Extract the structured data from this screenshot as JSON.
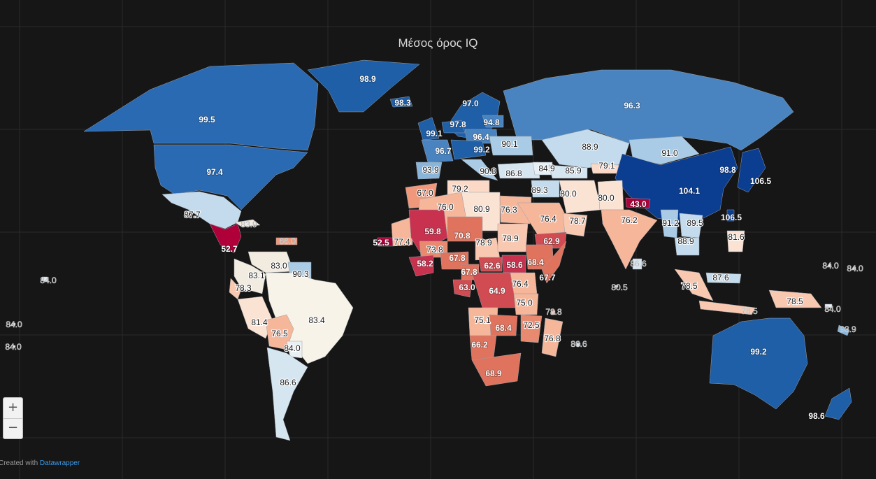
{
  "title": "Μέσος όρος IQ",
  "zoom": {
    "in_label": "+",
    "out_label": "−"
  },
  "credit": {
    "prefix": "Created with ",
    "link": "Datawrapper"
  },
  "legend_scale": {
    "low": "#b0003a",
    "mid": "#f7f3e8",
    "high": "#0b3d91"
  },
  "labels": [
    {
      "text": "98.9",
      "region": "greenland",
      "color": "#1f5fa8"
    },
    {
      "text": "98.3",
      "region": "iceland",
      "color": "#1f5fa8"
    },
    {
      "text": "97.0",
      "region": "scandinavia",
      "color": "#1f5fa8"
    },
    {
      "text": "99.5",
      "region": "canada",
      "color": "#2a6ab3"
    },
    {
      "text": "97.4",
      "region": "usa",
      "color": "#2a6ab3"
    },
    {
      "text": "96.3",
      "region": "russia",
      "color": "#4a84c0"
    },
    {
      "text": "99.1",
      "region": "uk",
      "color": "#1f5fa8"
    },
    {
      "text": "97.8",
      "region": "netherlands",
      "color": "#1f5fa8"
    },
    {
      "text": "94.8",
      "region": "baltics",
      "color": "#4a84c0"
    },
    {
      "text": "96.4",
      "region": "poland",
      "color": "#4a84c0"
    },
    {
      "text": "96.7",
      "region": "france",
      "color": "#4a84c0"
    },
    {
      "text": "99.2",
      "region": "central-europe",
      "color": "#1f5fa8"
    },
    {
      "text": "90.1",
      "region": "ukraine",
      "color": "#a9cbe5"
    },
    {
      "text": "88.9",
      "region": "kazakhstan",
      "color": "#c3dbec"
    },
    {
      "text": "91.0",
      "region": "mongolia",
      "color": "#a9cbe5"
    },
    {
      "text": "93.9",
      "region": "spain",
      "color": "#8ab5da"
    },
    {
      "text": "90.8",
      "region": "italy",
      "color": "#a9cbe5"
    },
    {
      "text": "86.8",
      "region": "turkey",
      "color": "#d6e6f1"
    },
    {
      "text": "84.9",
      "region": "caucasus",
      "color": "#e5eff5"
    },
    {
      "text": "85.9",
      "region": "uzbekistan",
      "color": "#d6e6f1"
    },
    {
      "text": "79.1",
      "region": "kyrgyzstan",
      "color": "#fbd9c6"
    },
    {
      "text": "98.8",
      "region": "korea",
      "color": "#1f5fa8"
    },
    {
      "text": "106.5",
      "region": "japan",
      "color": "#0b3d91"
    },
    {
      "text": "104.1",
      "region": "china",
      "color": "#0b3d91"
    },
    {
      "text": "67.0",
      "region": "morocco",
      "color": "#f0987c"
    },
    {
      "text": "79.2",
      "region": "algeria-north",
      "color": "#fbd9c6"
    },
    {
      "text": "89.3",
      "region": "syria",
      "color": "#c3dbec"
    },
    {
      "text": "80.0",
      "region": "iran",
      "color": "#fbe3d4"
    },
    {
      "text": "80.0",
      "region": "afghanistan",
      "color": "#fbe3d4"
    },
    {
      "text": "43.0",
      "region": "nepal",
      "color": "#b0003a"
    },
    {
      "text": "76.0",
      "region": "algeria",
      "color": "#f6b69a"
    },
    {
      "text": "80.9",
      "region": "libya",
      "color": "#fbe3d4"
    },
    {
      "text": "76.3",
      "region": "egypt",
      "color": "#f6b69a"
    },
    {
      "text": "76.4",
      "region": "saudi",
      "color": "#f6b69a"
    },
    {
      "text": "78.7",
      "region": "oman",
      "color": "#f9c8b0"
    },
    {
      "text": "76.2",
      "region": "india",
      "color": "#f6b69a"
    },
    {
      "text": "91.2",
      "region": "myanmar",
      "color": "#a9cbe5"
    },
    {
      "text": "89.5",
      "region": "laos",
      "color": "#c3dbec"
    },
    {
      "text": "88.9",
      "region": "cambodia",
      "color": "#c3dbec"
    },
    {
      "text": "106.5",
      "region": "taiwan",
      "color": "#0b3d91"
    },
    {
      "text": "81.6",
      "region": "philippines",
      "color": "#fbe3d4"
    },
    {
      "text": "87.7",
      "region": "mexico",
      "color": "#c3dbec"
    },
    {
      "text": "83.9",
      "region": "cuba",
      "color": "#f2ece0"
    },
    {
      "text": "52.7",
      "region": "guatemala",
      "color": "#b0003a"
    },
    {
      "text": "66.0",
      "region": "caribbean",
      "color": "#f0987c"
    },
    {
      "text": "83.0",
      "region": "venezuela",
      "color": "#f2ece0"
    },
    {
      "text": "83.1",
      "region": "colombia",
      "color": "#f2ece0"
    },
    {
      "text": "90.3",
      "region": "guyana",
      "color": "#a9cbe5"
    },
    {
      "text": "78.3",
      "region": "ecuador",
      "color": "#f9c8b0"
    },
    {
      "text": "81.4",
      "region": "peru",
      "color": "#fbe3d4"
    },
    {
      "text": "83.4",
      "region": "brazil",
      "color": "#f7f3e8"
    },
    {
      "text": "76.5",
      "region": "bolivia",
      "color": "#f6b69a"
    },
    {
      "text": "84.0",
      "region": "paraguay",
      "color": "#e9f0f4"
    },
    {
      "text": "86.6",
      "region": "argentina",
      "color": "#d6e6f1"
    },
    {
      "text": "52.5",
      "region": "senegal",
      "color": "#b0003a"
    },
    {
      "text": "77.4",
      "region": "mauritania",
      "color": "#f6b69a"
    },
    {
      "text": "59.8",
      "region": "mali",
      "color": "#c8324f"
    },
    {
      "text": "70.8",
      "region": "niger",
      "color": "#e0735e"
    },
    {
      "text": "78.9",
      "region": "chad",
      "color": "#f9c8b0"
    },
    {
      "text": "78.9",
      "region": "sudan",
      "color": "#f9c8b0"
    },
    {
      "text": "62.9",
      "region": "yemen",
      "color": "#d04c52"
    },
    {
      "text": "73.8",
      "region": "burkina",
      "color": "#e88a6f"
    },
    {
      "text": "58.2",
      "region": "liberia",
      "color": "#c8324f"
    },
    {
      "text": "67.8",
      "region": "nigeria",
      "color": "#e0735e"
    },
    {
      "text": "67.8",
      "region": "cameroon",
      "color": "#e0735e"
    },
    {
      "text": "62.6",
      "region": "car",
      "color": "#d04c52"
    },
    {
      "text": "58.6",
      "region": "south-sudan",
      "color": "#c8324f"
    },
    {
      "text": "68.4",
      "region": "ethiopia",
      "color": "#e0735e"
    },
    {
      "text": "67.7",
      "region": "somalia",
      "color": "#e0735e"
    },
    {
      "text": "63.0",
      "region": "gabon",
      "color": "#d04c52"
    },
    {
      "text": "64.9",
      "region": "drc",
      "color": "#d04c52"
    },
    {
      "text": "76.4",
      "region": "kenya",
      "color": "#f6b69a"
    },
    {
      "text": "75.0",
      "region": "tanzania",
      "color": "#f6b69a"
    },
    {
      "text": "78.8",
      "region": "seychelles",
      "color": "#f9c8b0"
    },
    {
      "text": "75.1",
      "region": "angola",
      "color": "#f6b69a"
    },
    {
      "text": "68.4",
      "region": "zambia",
      "color": "#e0735e"
    },
    {
      "text": "72.5",
      "region": "mozambique",
      "color": "#e88a6f"
    },
    {
      "text": "76.8",
      "region": "madagascar",
      "color": "#f6b69a"
    },
    {
      "text": "86.6",
      "region": "mauritius",
      "color": "#d6e6f1"
    },
    {
      "text": "66.2",
      "region": "namibia",
      "color": "#e0735e"
    },
    {
      "text": "68.9",
      "region": "south-africa",
      "color": "#e0735e"
    },
    {
      "text": "80.5",
      "region": "indian-ocean",
      "color": "#fbe3d4"
    },
    {
      "text": "86.6",
      "region": "sri-lanka",
      "color": "#d6e6f1"
    },
    {
      "text": "78.5",
      "region": "sumatra",
      "color": "#f9c8b0"
    },
    {
      "text": "87.6",
      "region": "malaysia",
      "color": "#c3dbec"
    },
    {
      "text": "78.5",
      "region": "java",
      "color": "#f9c8b0"
    },
    {
      "text": "78.5",
      "region": "papua",
      "color": "#f9c8b0"
    },
    {
      "text": "84.0",
      "region": "solomon",
      "color": "#e9f0f4"
    },
    {
      "text": "84.0",
      "region": "micronesia-1",
      "color": "#e9f0f4"
    },
    {
      "text": "84.0",
      "region": "micronesia-2",
      "color": "#e9f0f4"
    },
    {
      "text": "93.9",
      "region": "new-caledonia",
      "color": "#8ab5da"
    },
    {
      "text": "99.2",
      "region": "australia",
      "color": "#1f5fa8"
    },
    {
      "text": "98.6",
      "region": "new-zealand",
      "color": "#1f5fa8"
    },
    {
      "text": "84.0",
      "region": "hawaii",
      "color": "#e9f0f4"
    },
    {
      "text": "84.0",
      "region": "pacific-1",
      "color": "#e9f0f4"
    },
    {
      "text": "84.0",
      "region": "pacific-2",
      "color": "#e9f0f4"
    }
  ]
}
